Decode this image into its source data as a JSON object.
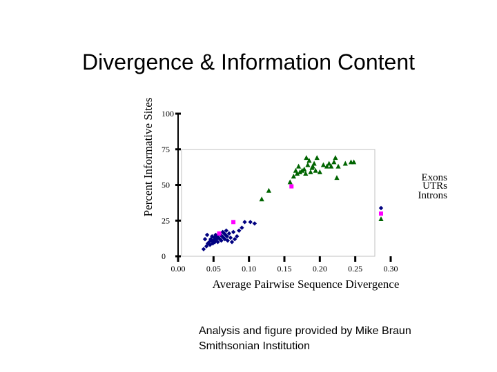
{
  "slide": {
    "title": "Divergence & Information Content",
    "credit_line1": "Analysis and figure provided by Mike Braun",
    "credit_line2": "Smithsonian Institution"
  },
  "chart_data": {
    "type": "scatter",
    "xlabel": "Average Pairwise Sequence Divergence",
    "ylabel": "Percent Informative Sites",
    "xlim": [
      0.0,
      0.3
    ],
    "ylim": [
      0,
      100
    ],
    "x_ticks": [
      "0.00",
      "0.05",
      "0.10",
      "0.15",
      "0.20",
      "0.25",
      "0.30"
    ],
    "y_ticks": [
      "0",
      "25",
      "50",
      "75",
      "100"
    ],
    "legend_position": "right",
    "series": [
      {
        "name": "Exons",
        "marker": "diamond",
        "color": "#000080",
        "points": [
          [
            0.036,
            5
          ],
          [
            0.04,
            7
          ],
          [
            0.042,
            9
          ],
          [
            0.044,
            10
          ],
          [
            0.045,
            8
          ],
          [
            0.046,
            12
          ],
          [
            0.047,
            11
          ],
          [
            0.048,
            14
          ],
          [
            0.049,
            9
          ],
          [
            0.05,
            11
          ],
          [
            0.051,
            13
          ],
          [
            0.052,
            10
          ],
          [
            0.053,
            15
          ],
          [
            0.054,
            12
          ],
          [
            0.055,
            14
          ],
          [
            0.056,
            10
          ],
          [
            0.057,
            13
          ],
          [
            0.058,
            16
          ],
          [
            0.059,
            12
          ],
          [
            0.06,
            15
          ],
          [
            0.061,
            11
          ],
          [
            0.062,
            14
          ],
          [
            0.063,
            17
          ],
          [
            0.064,
            13
          ],
          [
            0.065,
            16
          ],
          [
            0.066,
            12
          ],
          [
            0.067,
            15
          ],
          [
            0.068,
            18
          ],
          [
            0.069,
            14
          ],
          [
            0.07,
            11
          ],
          [
            0.072,
            16
          ],
          [
            0.074,
            13
          ],
          [
            0.076,
            10
          ],
          [
            0.078,
            17
          ],
          [
            0.08,
            12
          ],
          [
            0.083,
            14
          ],
          [
            0.086,
            18
          ],
          [
            0.09,
            20
          ],
          [
            0.094,
            24
          ],
          [
            0.102,
            24
          ],
          [
            0.108,
            23
          ],
          [
            0.038,
            12
          ],
          [
            0.041,
            15
          ]
        ]
      },
      {
        "name": "UTRs",
        "marker": "square",
        "color": "#ff00ff",
        "points": [
          [
            0.058,
            16
          ],
          [
            0.078,
            24
          ],
          [
            0.16,
            49
          ]
        ]
      },
      {
        "name": "Introns",
        "marker": "triangle",
        "color": "#006400",
        "points": [
          [
            0.118,
            40
          ],
          [
            0.128,
            46
          ],
          [
            0.158,
            52
          ],
          [
            0.163,
            56
          ],
          [
            0.166,
            60
          ],
          [
            0.168,
            58
          ],
          [
            0.17,
            63
          ],
          [
            0.172,
            59
          ],
          [
            0.175,
            60
          ],
          [
            0.178,
            61
          ],
          [
            0.18,
            58
          ],
          [
            0.183,
            64
          ],
          [
            0.185,
            67
          ],
          [
            0.187,
            59
          ],
          [
            0.189,
            62
          ],
          [
            0.192,
            65
          ],
          [
            0.194,
            60
          ],
          [
            0.196,
            69
          ],
          [
            0.2,
            59
          ],
          [
            0.205,
            64
          ],
          [
            0.21,
            63
          ],
          [
            0.213,
            65
          ],
          [
            0.216,
            63
          ],
          [
            0.22,
            66
          ],
          [
            0.222,
            69
          ],
          [
            0.224,
            55
          ],
          [
            0.226,
            63
          ],
          [
            0.236,
            65
          ],
          [
            0.244,
            66
          ],
          [
            0.248,
            66
          ],
          [
            0.181,
            69
          ],
          [
            0.19,
            63
          ]
        ]
      }
    ]
  }
}
